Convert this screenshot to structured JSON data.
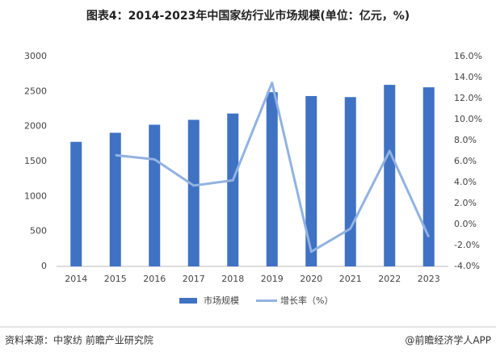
{
  "chart_data": {
    "type": "bar",
    "title": "图表4：2014-2023年中国家纺行业市场规模(单位：亿元，%)",
    "categories": [
      "2014",
      "2015",
      "2016",
      "2017",
      "2018",
      "2019",
      "2020",
      "2021",
      "2022",
      "2023"
    ],
    "series": [
      {
        "name": "市场规模",
        "type": "bar",
        "color": "#3f72c3",
        "values": [
          1780,
          1910,
          2025,
          2095,
          2185,
          2490,
          2435,
          2420,
          2595,
          2560
        ]
      },
      {
        "name": "增长率（%）",
        "type": "line",
        "axis": "y2",
        "color": "#91b2e2",
        "values": [
          null,
          6.6,
          6.2,
          3.7,
          4.2,
          13.5,
          -2.6,
          -0.4,
          7.0,
          -1.2
        ]
      }
    ],
    "ylim": [
      0,
      3000
    ],
    "yticks": [
      0,
      500,
      1000,
      1500,
      2000,
      2500,
      3000
    ],
    "y2lim": [
      -4,
      16
    ],
    "y2ticks": [
      {
        "value": -4,
        "label": "-4.0%"
      },
      {
        "value": -2,
        "label": "-2.0%"
      },
      {
        "value": 0,
        "label": "0.0%"
      },
      {
        "value": 2,
        "label": "2.0%"
      },
      {
        "value": 4,
        "label": "4.0%"
      },
      {
        "value": 6,
        "label": "6.0%"
      },
      {
        "value": 8,
        "label": "8.0%"
      },
      {
        "value": 10,
        "label": "10.0%"
      },
      {
        "value": 12,
        "label": "12.0%"
      },
      {
        "value": 14,
        "label": "14.0%"
      },
      {
        "value": 16,
        "label": "16.0%"
      }
    ],
    "source": "资料来源：中家纺 前瞻产业研究院",
    "credit": "@前瞻经济学人APP"
  }
}
